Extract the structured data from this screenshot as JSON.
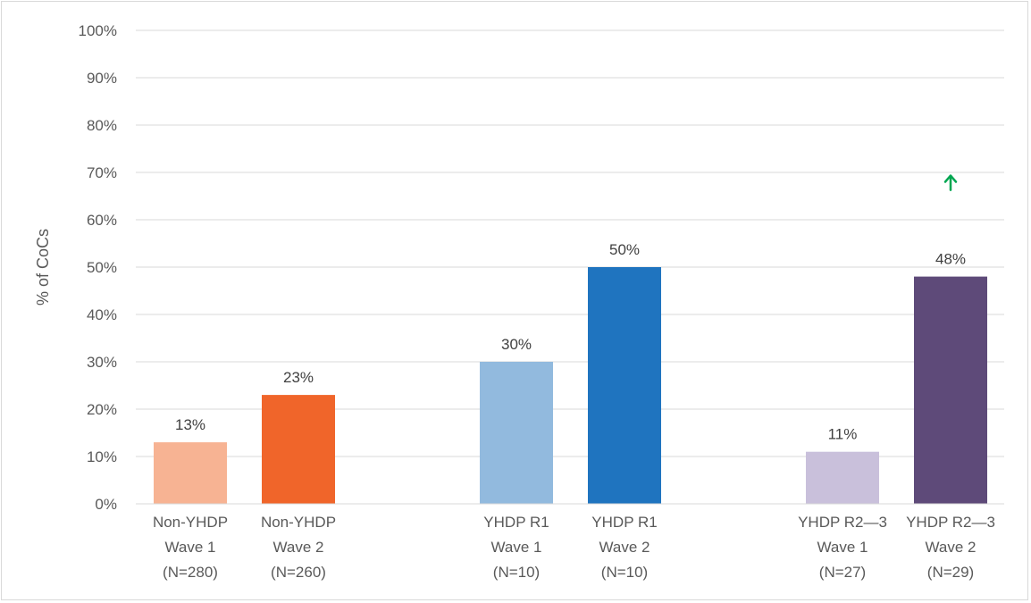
{
  "chart_data": {
    "type": "bar",
    "title": "",
    "ylabel": "% of CoCs",
    "xlabel": "",
    "ylim": [
      0,
      100
    ],
    "yticks": [
      0,
      10,
      20,
      30,
      40,
      50,
      60,
      70,
      80,
      90,
      100
    ],
    "ytick_suffix": "%",
    "grid": true,
    "categories": [
      [
        "Non-YHDP",
        "Wave 1",
        "(N=280)"
      ],
      [
        "Non-YHDP",
        "Wave 2",
        "(N=260)"
      ],
      [
        "YHDP R1",
        "Wave 1",
        "(N=10)"
      ],
      [
        "YHDP R1",
        "Wave 2",
        "(N=10)"
      ],
      [
        "YHDP R2—3",
        "Wave 1",
        "(N=27)"
      ],
      [
        "YHDP R2—3",
        "Wave 2",
        "(N=29)"
      ]
    ],
    "values": [
      13,
      23,
      30,
      50,
      11,
      48
    ],
    "data_labels": [
      "13%",
      "23%",
      "30%",
      "50%",
      "11%",
      "48%"
    ],
    "colors": [
      "#f7b393",
      "#f0652a",
      "#92bade",
      "#1f74bf",
      "#c9c0db",
      "#5e4a79"
    ],
    "annotation": {
      "icon": "up-arrow-icon",
      "color": "#00a651",
      "category_index": 5,
      "value": 68
    }
  }
}
